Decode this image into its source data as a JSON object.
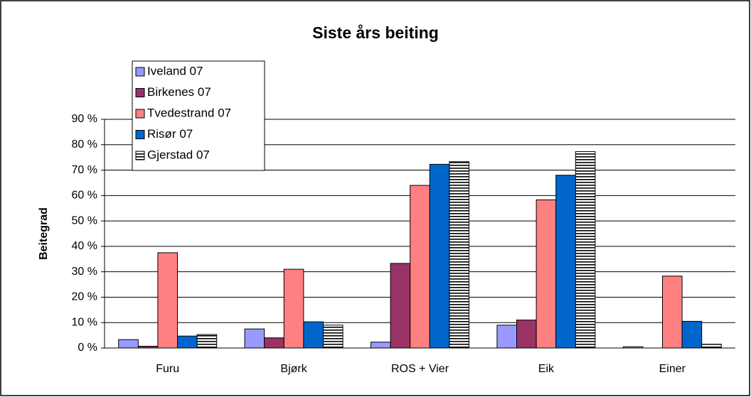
{
  "chart_data": {
    "type": "bar",
    "title": "Siste års beiting",
    "y_label": "Beitegrad",
    "categories": [
      "Furu",
      "Bjørk",
      "ROS + Vier",
      "Eik",
      "Einer"
    ],
    "series": [
      {
        "name": "Iveland 07",
        "color": "#9999ff",
        "values": [
          3.3,
          7.5,
          2.3,
          9.0,
          0.5
        ]
      },
      {
        "name": "Birkenes 07",
        "color": "#993366",
        "values": [
          0.7,
          4.0,
          33.3,
          11.0,
          0
        ]
      },
      {
        "name": "Tvedestrand 07",
        "color": "#ff8080",
        "values": [
          37.5,
          31.0,
          64.0,
          58.3,
          28.3
        ]
      },
      {
        "name": "Risør 07",
        "color": "#0066cc",
        "values": [
          4.7,
          10.3,
          72.3,
          68.0,
          10.5
        ]
      },
      {
        "name": "Gjerstad 07",
        "color": "#000000",
        "pattern": "horizontal",
        "values": [
          5.3,
          9.0,
          73.3,
          77.3,
          1.5
        ]
      }
    ],
    "ylim": [
      0,
      90
    ],
    "yticks": [
      {
        "value": 0,
        "label": "0 %"
      },
      {
        "value": 10,
        "label": "10 %"
      },
      {
        "value": 20,
        "label": "20 %"
      },
      {
        "value": 30,
        "label": "30 %"
      },
      {
        "value": 40,
        "label": "40 %"
      },
      {
        "value": 50,
        "label": "50 %"
      },
      {
        "value": 60,
        "label": "60 %"
      },
      {
        "value": 70,
        "label": "70 %"
      },
      {
        "value": 80,
        "label": "80 %"
      },
      {
        "value": 90,
        "label": "90 %"
      }
    ],
    "grid": true,
    "legend": "top-left"
  }
}
